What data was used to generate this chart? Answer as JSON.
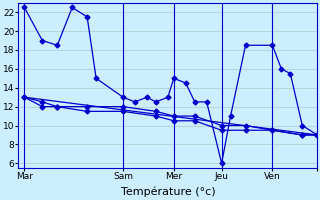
{
  "background_color": "#cceeff",
  "grid_color": "#aacccc",
  "line_color": "#0000cc",
  "xlabel": "Température (°c)",
  "xlabel_fontsize": 8,
  "yticks": [
    6,
    8,
    10,
    12,
    14,
    16,
    18,
    20,
    22
  ],
  "ylim": [
    5.5,
    23.0
  ],
  "xlim": [
    0,
    100
  ],
  "xtick_positions": [
    2,
    35,
    52,
    68,
    85,
    100
  ],
  "xtick_labels": [
    "Mar",
    "Sam",
    "Mer",
    "Jeu",
    "Ven",
    ""
  ],
  "vlines": [
    2,
    35,
    52,
    68,
    85
  ],
  "series0_x": [
    2,
    8,
    13,
    18,
    23,
    26,
    35,
    39,
    43,
    46,
    50,
    52,
    56,
    59,
    63,
    68,
    71,
    76,
    85,
    88,
    91,
    95,
    100
  ],
  "series0_y": [
    22.5,
    19.0,
    18.5,
    22.5,
    21.5,
    15.0,
    13.0,
    12.5,
    13.0,
    12.5,
    13.0,
    15.0,
    14.5,
    12.5,
    12.5,
    6.0,
    11.0,
    18.5,
    18.5,
    16.0,
    15.5,
    10.0,
    9.0
  ],
  "series1_x": [
    2,
    8,
    13,
    23,
    35,
    46,
    52,
    59,
    68,
    76,
    85,
    95,
    100
  ],
  "series1_y": [
    13.0,
    12.5,
    12.0,
    12.0,
    12.0,
    11.5,
    11.0,
    11.0,
    10.0,
    10.0,
    9.5,
    9.0,
    9.0
  ],
  "series2_x": [
    2,
    8,
    13,
    23,
    35,
    46,
    52,
    59,
    68,
    76,
    85,
    95,
    100
  ],
  "series2_y": [
    13.0,
    12.0,
    12.0,
    11.5,
    11.5,
    11.0,
    10.5,
    10.5,
    9.5,
    9.5,
    9.5,
    9.0,
    9.0
  ],
  "series3_x": [
    2,
    100
  ],
  "series3_y": [
    13.0,
    9.0
  ]
}
